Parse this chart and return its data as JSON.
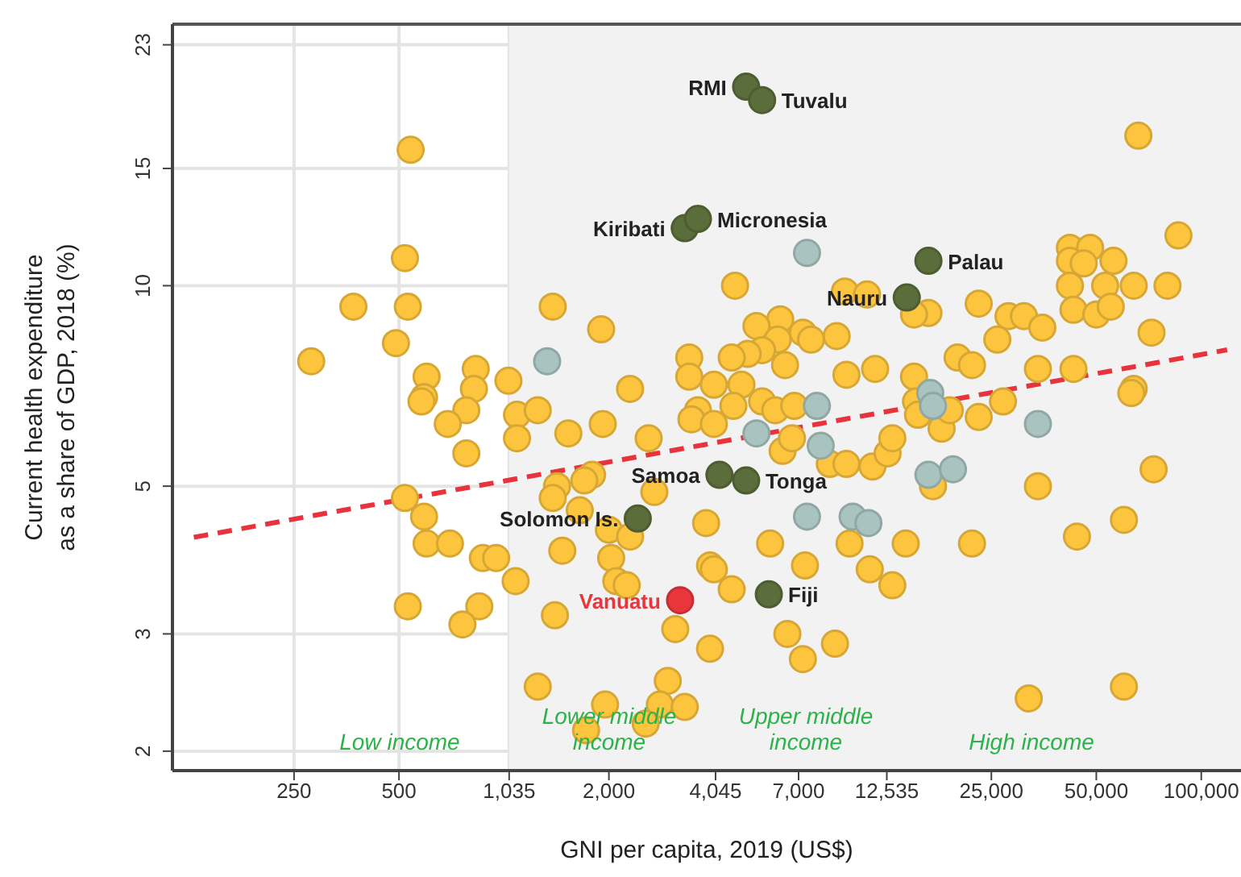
{
  "chart_data": {
    "type": "scatter",
    "xlabel": "GNI per capita, 2019 (US$)",
    "ylabel": "Current health expenditure\nas a share of GDP, 2018 (%)",
    "log": "xy",
    "grid": true,
    "marker": "circle",
    "xlim": [
      112,
      130000
    ],
    "xticks": [
      250,
      500,
      {
        "value": 1035,
        "label": "1,035"
      },
      {
        "value": 2000,
        "label": "2,000"
      },
      {
        "value": 4045,
        "label": "4,045"
      },
      {
        "value": 7000,
        "label": "7,000"
      },
      {
        "value": 12535,
        "label": "12,535"
      },
      {
        "value": 25000,
        "label": "25,000"
      },
      {
        "value": 50000,
        "label": "50,000"
      },
      {
        "value": 100000,
        "label": "100,000"
      }
    ],
    "ylim": [
      1.87,
      24.7
    ],
    "yticks": [
      2,
      3,
      5,
      10,
      15,
      23
    ],
    "bands": [
      {
        "axis": "x",
        "from": 1035,
        "to": 130000,
        "color": "#f2f2f2"
      }
    ],
    "annotations": [
      "Low income",
      "Lower middle\nincome",
      "Upper middle\nincome",
      "High income"
    ],
    "series": [
      {
        "color": "#fdc53e",
        "x": [
          280,
          370,
          540,
          520,
          530,
          490,
          600,
          590,
          830,
          820,
          1030,
          1380,
          1900,
          2300,
          3400,
          3400,
          580,
          780,
          690,
          1090,
          1250,
          1090,
          1530,
          1920,
          2600,
          780,
          520,
          590,
          600,
          700,
          870,
          950,
          1080,
          1420,
          1380,
          1790,
          1700,
          1650,
          2000,
          2300,
          1470,
          2030,
          2100,
          2250,
          1400,
          3100,
          530,
          850,
          760,
          1250,
          2950,
          1950,
          2800,
          3300,
          2550,
          1720,
          3800,
          3900,
          3900,
          2700,
          3600,
          3450,
          66000,
          4600,
          86000,
          42000,
          48000,
          56000,
          42000,
          46000,
          64000,
          80000,
          42000,
          53000,
          43000,
          50000,
          55000,
          72000,
          23000,
          28000,
          31000,
          35000,
          26000,
          34000,
          43000,
          64000,
          20000,
          22000,
          15000,
          16500,
          15000,
          11600,
          9600,
          9000,
          9500,
          11000,
          7200,
          7600,
          6200,
          5300,
          6100,
          5500,
          5000,
          6400,
          4500,
          4000,
          4800,
          4550,
          5500,
          6000,
          6800,
          4000,
          6300,
          6700,
          8600,
          9600,
          11400,
          12600,
          13000,
          15200,
          15400,
          18000,
          19000,
          23000,
          27000,
          63000,
          73000,
          34000,
          17000,
          5800,
          7300,
          9800,
          11200,
          14200,
          22000,
          44000,
          60000,
          4000,
          4500,
          13000,
          6500,
          8900,
          7200,
          32000,
          60000
        ],
        "values": [
          7.7,
          9.3,
          16.0,
          11.0,
          9.3,
          8.2,
          7.3,
          6.8,
          7.5,
          7.0,
          7.2,
          9.3,
          8.6,
          7.0,
          7.8,
          7.3,
          6.7,
          6.5,
          6.2,
          6.4,
          6.5,
          5.9,
          6.0,
          6.2,
          5.9,
          5.6,
          4.8,
          4.5,
          4.1,
          4.1,
          3.9,
          3.9,
          3.6,
          5.0,
          4.8,
          5.2,
          5.1,
          4.6,
          4.3,
          4.2,
          4.0,
          3.9,
          3.6,
          3.55,
          3.2,
          3.05,
          3.3,
          3.3,
          3.1,
          2.5,
          2.55,
          2.35,
          2.35,
          2.33,
          2.2,
          2.15,
          4.4,
          3.8,
          2.85,
          4.9,
          6.5,
          6.3,
          16.8,
          10.0,
          11.9,
          11.4,
          11.4,
          10.9,
          10.9,
          10.8,
          10.0,
          10.0,
          10.0,
          10.0,
          9.2,
          9.05,
          9.3,
          8.5,
          9.4,
          9.0,
          9.0,
          8.65,
          8.3,
          7.5,
          7.5,
          7.0,
          7.8,
          7.6,
          7.3,
          9.1,
          9.05,
          7.5,
          7.35,
          8.4,
          9.8,
          9.7,
          8.5,
          8.3,
          8.9,
          8.7,
          8.3,
          8.0,
          7.9,
          7.6,
          7.8,
          7.1,
          7.1,
          6.6,
          6.7,
          6.5,
          6.6,
          6.2,
          5.65,
          5.9,
          5.4,
          5.4,
          5.35,
          5.6,
          5.9,
          6.7,
          6.4,
          6.1,
          6.5,
          6.35,
          6.7,
          6.9,
          5.3,
          5.0,
          5.0,
          4.1,
          3.8,
          4.1,
          3.75,
          4.1,
          4.1,
          4.2,
          4.45,
          3.75,
          3.5,
          3.55,
          3.0,
          2.9,
          2.75,
          2.4,
          2.5
        ]
      },
      {
        "type": "line",
        "color": "#e8323c",
        "line_style": "dashed",
        "marker": "none",
        "x": [
          129,
          118600
        ],
        "values": [
          4.19,
          8.01
        ]
      },
      {
        "color": "#a9c4c0",
        "x": [
          1330,
          7400,
          5300,
          7900,
          8100,
          7400,
          10000,
          11100,
          16700,
          17000,
          16500,
          19400,
          34000
        ],
        "values": [
          7.7,
          11.2,
          6.0,
          6.6,
          5.75,
          4.5,
          4.5,
          4.4,
          6.9,
          6.6,
          5.2,
          5.3,
          6.2
        ]
      },
      {
        "color": "#5b6d3a",
        "colors": [
          "#5b6d3a",
          "#5b6d3a",
          "#5b6d3a",
          "#5b6d3a",
          "#5b6d3a",
          "#5b6d3a",
          "#5b6d3a",
          "#5b6d3a",
          "#5b6d3a",
          "#5b6d3a",
          "#e8363c"
        ],
        "x": [
          4950,
          5500,
          3300,
          3600,
          16500,
          14300,
          4150,
          4950,
          2420,
          5750,
          3200
        ],
        "values": [
          19.9,
          19.0,
          12.2,
          12.6,
          10.9,
          9.6,
          5.2,
          5.1,
          4.47,
          3.44,
          3.37
        ],
        "value_labels": [
          "RMI",
          "Tuvalu",
          "Kiribati",
          "Micronesia",
          "Palau",
          "Nauru",
          "Samoa",
          "Tonga",
          "Solomon Is.",
          "Fiji",
          "Vanuatu"
        ]
      }
    ]
  }
}
